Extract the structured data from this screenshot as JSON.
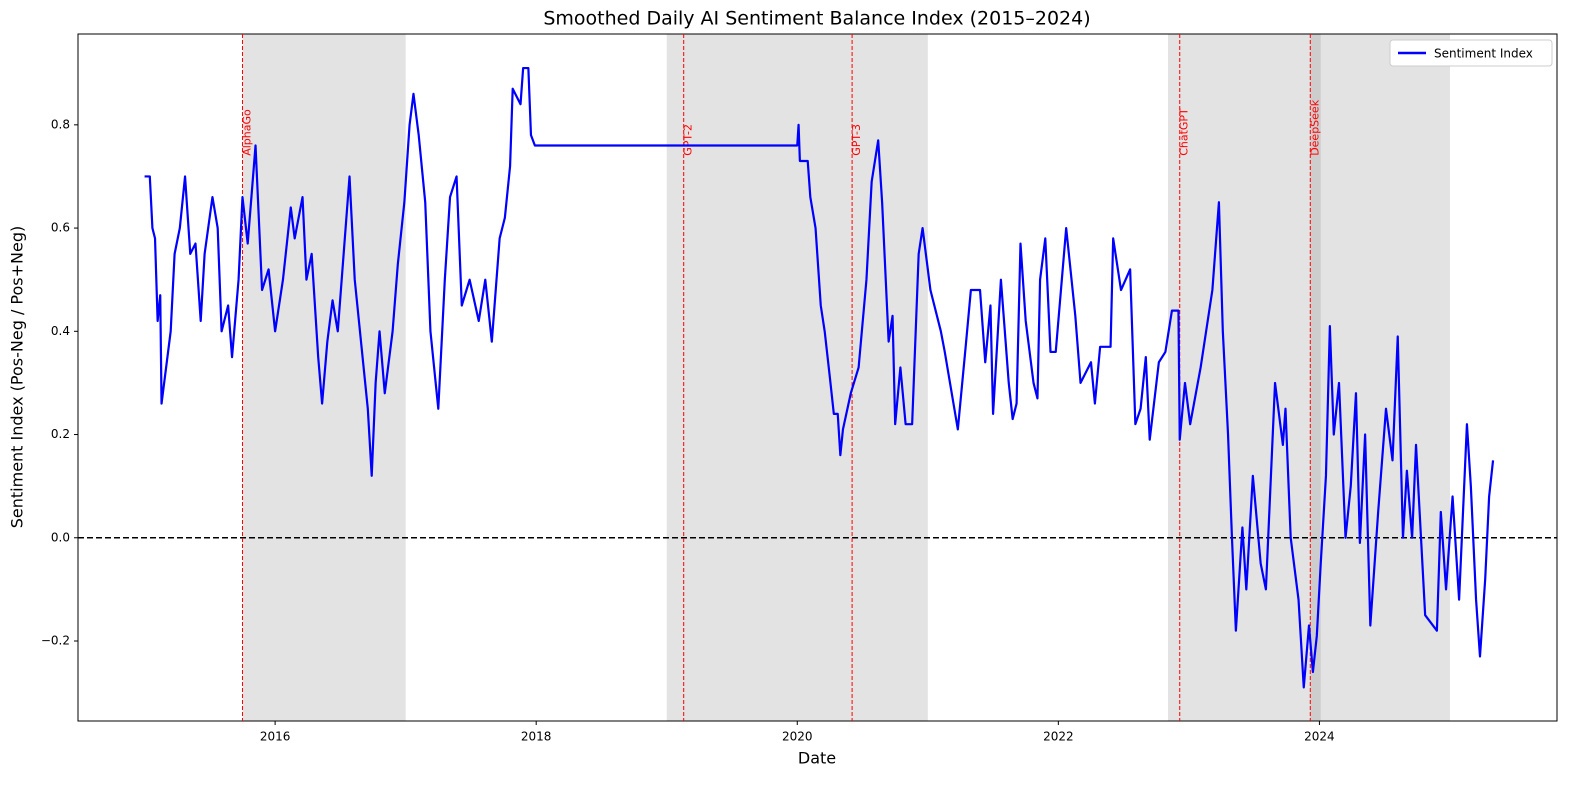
{
  "chart_data": {
    "type": "line",
    "title": "Smoothed Daily AI Sentiment Balance Index (2015–2024)",
    "x_label": "Date",
    "y_label": "Sentiment Index (Pos-Neg / Pos+Neg)",
    "xlim": [
      2014.49,
      2025.82
    ],
    "ylim": [
      -0.355,
      0.976
    ],
    "xticks": [
      2016,
      2018,
      2020,
      2022,
      2024
    ],
    "yticks": [
      {
        "value": -0.2,
        "label": "−0.2"
      },
      {
        "value": 0,
        "label": "0.0"
      },
      0.2,
      0.4,
      0.6,
      0.8
    ],
    "legend": "upper right",
    "hline": 0,
    "shaded_spans": [
      [
        2015.75,
        2017.0
      ],
      [
        2019.0,
        2021.0
      ],
      [
        2022.84,
        2024.01
      ],
      [
        2023.93,
        2025.0
      ]
    ],
    "events": [
      {
        "x": 2015.75,
        "label": "AlphaGo"
      },
      {
        "x": 2019.13,
        "label": "GPT-2"
      },
      {
        "x": 2020.42,
        "label": "GPT-3"
      },
      {
        "x": 2022.93,
        "label": "ChatGPT"
      },
      {
        "x": 2023.93,
        "label": "DeepSeek"
      }
    ],
    "x": [
      2015.0,
      2015.04,
      2015.06,
      2015.08,
      2015.1,
      2015.12,
      2015.13,
      2015.16,
      2015.2,
      2015.23,
      2015.27,
      2015.31,
      2015.35,
      2015.39,
      2015.43,
      2015.46,
      2015.52,
      2015.56,
      2015.59,
      2015.64,
      2015.67,
      2015.72,
      2015.75,
      2015.79,
      2015.85,
      2015.9,
      2015.95,
      2016.0,
      2016.06,
      2016.12,
      2016.15,
      2016.21,
      2016.24,
      2016.28,
      2016.33,
      2016.36,
      2016.4,
      2016.44,
      2016.48,
      2016.54,
      2016.57,
      2016.61,
      2016.65,
      2016.71,
      2016.74,
      2016.77,
      2016.8,
      2016.84,
      2016.9,
      2016.94,
      2016.99,
      2017.03,
      2017.06,
      2017.1,
      2017.15,
      2017.19,
      2017.25,
      2017.3,
      2017.34,
      2017.39,
      2017.43,
      2017.49,
      2017.56,
      2017.61,
      2017.66,
      2017.72,
      2017.76,
      2017.8,
      2017.82,
      2017.88,
      2017.9,
      2017.94,
      2017.96,
      2017.99,
      2020.0,
      2020.01,
      2020.02,
      2020.08,
      2020.1,
      2020.14,
      2020.18,
      2020.21,
      2020.25,
      2020.28,
      2020.31,
      2020.33,
      2020.35,
      2020.41,
      2020.47,
      2020.53,
      2020.57,
      2020.62,
      2020.65,
      2020.7,
      2020.73,
      2020.75,
      2020.79,
      2020.83,
      2020.88,
      2020.93,
      2020.96,
      2021.02,
      2021.1,
      2021.13,
      2021.23,
      2021.29,
      2021.33,
      2021.4,
      2021.44,
      2021.48,
      2021.5,
      2021.56,
      2021.62,
      2021.65,
      2021.68,
      2021.71,
      2021.75,
      2021.81,
      2021.84,
      2021.86,
      2021.9,
      2021.94,
      2021.98,
      2022.06,
      2022.13,
      2022.17,
      2022.25,
      2022.28,
      2022.32,
      2022.4,
      2022.42,
      2022.48,
      2022.55,
      2022.59,
      2022.63,
      2022.67,
      2022.7,
      2022.77,
      2022.82,
      2022.87,
      2022.92,
      2022.93,
      2022.97,
      2023.01,
      2023.09,
      2023.18,
      2023.23,
      2023.26,
      2023.3,
      2023.33,
      2023.36,
      2023.41,
      2023.44,
      2023.49,
      2023.55,
      2023.59,
      2023.66,
      2023.72,
      2023.74,
      2023.78,
      2023.84,
      2023.88,
      2023.92,
      2023.95,
      2023.98,
      2024.01,
      2024.05,
      2024.08,
      2024.11,
      2024.15,
      2024.2,
      2024.24,
      2024.28,
      2024.31,
      2024.35,
      2024.39,
      2024.45,
      2024.51,
      2024.56,
      2024.6,
      2024.64,
      2024.67,
      2024.71,
      2024.74,
      2024.81,
      2024.9,
      2024.93,
      2024.97,
      2025.02,
      2025.07,
      2025.1,
      2025.13,
      2025.16,
      2025.2,
      2025.23,
      2025.27,
      2025.3,
      2025.33
    ],
    "series": [
      {
        "name": "Sentiment Index",
        "color": "#0000ff",
        "values": [
          0.7,
          0.7,
          0.6,
          0.58,
          0.42,
          0.47,
          0.26,
          0.32,
          0.4,
          0.55,
          0.6,
          0.7,
          0.55,
          0.57,
          0.42,
          0.55,
          0.66,
          0.6,
          0.4,
          0.45,
          0.35,
          0.5,
          0.66,
          0.57,
          0.76,
          0.48,
          0.52,
          0.4,
          0.5,
          0.64,
          0.58,
          0.66,
          0.5,
          0.55,
          0.35,
          0.26,
          0.38,
          0.46,
          0.4,
          0.6,
          0.7,
          0.5,
          0.4,
          0.25,
          0.12,
          0.3,
          0.4,
          0.28,
          0.4,
          0.53,
          0.65,
          0.8,
          0.86,
          0.78,
          0.65,
          0.4,
          0.25,
          0.5,
          0.66,
          0.7,
          0.45,
          0.5,
          0.42,
          0.5,
          0.38,
          0.58,
          0.62,
          0.72,
          0.87,
          0.84,
          0.91,
          0.91,
          0.78,
          0.76,
          0.76,
          0.8,
          0.73,
          0.73,
          0.66,
          0.6,
          0.45,
          0.4,
          0.31,
          0.24,
          0.24,
          0.16,
          0.21,
          0.28,
          0.33,
          0.5,
          0.69,
          0.77,
          0.65,
          0.38,
          0.43,
          0.22,
          0.33,
          0.22,
          0.22,
          0.55,
          0.6,
          0.48,
          0.4,
          0.36,
          0.21,
          0.37,
          0.48,
          0.48,
          0.34,
          0.45,
          0.24,
          0.5,
          0.3,
          0.23,
          0.26,
          0.57,
          0.42,
          0.3,
          0.27,
          0.5,
          0.58,
          0.36,
          0.36,
          0.6,
          0.43,
          0.3,
          0.34,
          0.26,
          0.37,
          0.37,
          0.58,
          0.48,
          0.52,
          0.22,
          0.25,
          0.35,
          0.19,
          0.34,
          0.36,
          0.44,
          0.44,
          0.19,
          0.3,
          0.22,
          0.33,
          0.48,
          0.65,
          0.4,
          0.2,
          0.0,
          -0.18,
          0.02,
          -0.1,
          0.12,
          -0.05,
          -0.1,
          0.3,
          0.18,
          0.25,
          0.0,
          -0.12,
          -0.29,
          -0.17,
          -0.26,
          -0.19,
          -0.05,
          0.12,
          0.41,
          0.2,
          0.3,
          0.0,
          0.1,
          0.28,
          -0.01,
          0.2,
          -0.17,
          0.05,
          0.25,
          0.15,
          0.39,
          0.0,
          0.13,
          0.0,
          0.18,
          -0.15,
          -0.18,
          0.05,
          -0.1,
          0.08,
          -0.12,
          0.05,
          0.22,
          0.1,
          -0.12,
          -0.23,
          -0.08,
          0.08,
          0.15
        ]
      }
    ]
  }
}
